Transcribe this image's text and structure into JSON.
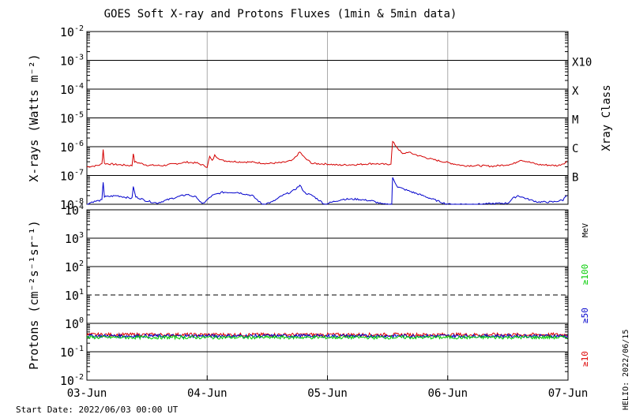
{
  "title": "GOES Soft X-ray and Protons Fluxes   (1min & 5min data)",
  "start_date_label": "Start Date: 2022/06/03 00:00 UT",
  "credit": "HELIO: 2022/06/15",
  "colors": {
    "xray_long": "#d40000",
    "xray_short": "#0000cc",
    "proton_10": "#dd0000",
    "proton_50": "#0000cc",
    "proton_100": "#00cc00",
    "grid": "#000000",
    "day_lines": "#aaaaaa"
  },
  "chart_data": [
    {
      "type": "line",
      "panel": "xray",
      "ylabel": "X-rays (Watts m⁻²)",
      "yscale": "log",
      "ylim": [
        1e-08,
        0.01
      ],
      "y_ticks": [
        {
          "base": "10",
          "exp": "-2"
        },
        {
          "base": "10",
          "exp": "-3"
        },
        {
          "base": "10",
          "exp": "-4"
        },
        {
          "base": "10",
          "exp": "-5"
        },
        {
          "base": "10",
          "exp": "-6"
        },
        {
          "base": "10",
          "exp": "-7"
        },
        {
          "base": "10",
          "exp": "-8"
        }
      ],
      "right_axis_label": "Xray Class",
      "class_labels": [
        {
          "label": "X10",
          "level": 0.001
        },
        {
          "label": "X",
          "level": 0.0001
        },
        {
          "label": "M",
          "level": 1e-05
        },
        {
          "label": "C",
          "level": 1e-06
        },
        {
          "label": "B",
          "level": 1e-07
        }
      ],
      "x_ticks": [
        "03-Jun",
        "04-Jun",
        "05-Jun",
        "06-Jun",
        "07-Jun"
      ],
      "xlim": [
        "2022-06-03",
        "2022-06-07"
      ],
      "series": [
        {
          "color_key": "xray_long",
          "points": [
            [
              "2022-06-03 00:00",
              2e-07
            ],
            [
              "2022-06-03 02:00",
              2.2e-07
            ],
            [
              "2022-06-03 03:00",
              2.5e-07
            ],
            [
              "2022-06-03 03:15",
              8e-07
            ],
            [
              "2022-06-03 03:30",
              2.6e-07
            ],
            [
              "2022-06-03 06:00",
              2.4e-07
            ],
            [
              "2022-06-03 09:00",
              2.2e-07
            ],
            [
              "2022-06-03 09:15",
              6e-07
            ],
            [
              "2022-06-03 09:30",
              3e-07
            ],
            [
              "2022-06-03 12:00",
              2.3e-07
            ],
            [
              "2022-06-03 15:00",
              2.2e-07
            ],
            [
              "2022-06-03 18:00",
              2.6e-07
            ],
            [
              "2022-06-03 20:00",
              2.9e-07
            ],
            [
              "2022-06-03 22:00",
              2.7e-07
            ],
            [
              "2022-06-04 00:00",
              2e-07
            ],
            [
              "2022-06-04 00:30",
              4.5e-07
            ],
            [
              "2022-06-04 01:00",
              3.2e-07
            ],
            [
              "2022-06-04 01:30",
              5e-07
            ],
            [
              "2022-06-04 03:00",
              3.3e-07
            ],
            [
              "2022-06-04 06:00",
              3e-07
            ],
            [
              "2022-06-04 09:00",
              2.9e-07
            ],
            [
              "2022-06-04 12:00",
              2.6e-07
            ],
            [
              "2022-06-04 15:00",
              2.8e-07
            ],
            [
              "2022-06-04 17:00",
              3.3e-07
            ],
            [
              "2022-06-04 18:30",
              6.5e-07
            ],
            [
              "2022-06-04 19:30",
              4e-07
            ],
            [
              "2022-06-04 21:00",
              2.6e-07
            ],
            [
              "2022-06-05 00:00",
              2.5e-07
            ],
            [
              "2022-06-05 02:00",
              2.3e-07
            ],
            [
              "2022-06-05 06:00",
              2.4e-07
            ],
            [
              "2022-06-05 09:00",
              2.6e-07
            ],
            [
              "2022-06-05 12:00",
              2.4e-07
            ],
            [
              "2022-06-05 12:40",
              2.6e-07
            ],
            [
              "2022-06-05 13:00",
              1.5e-06
            ],
            [
              "2022-06-05 14:00",
              9e-07
            ],
            [
              "2022-06-05 15:00",
              5.5e-07
            ],
            [
              "2022-06-05 16:00",
              6.5e-07
            ],
            [
              "2022-06-05 18:00",
              5e-07
            ],
            [
              "2022-06-05 21:00",
              3.6e-07
            ],
            [
              "2022-06-06 00:00",
              2.8e-07
            ],
            [
              "2022-06-06 03:00",
              2.2e-07
            ],
            [
              "2022-06-06 06:00",
              2.2e-07
            ],
            [
              "2022-06-06 09:00",
              2.1e-07
            ],
            [
              "2022-06-06 13:00",
              2.5e-07
            ],
            [
              "2022-06-06 14:30",
              3.5e-07
            ],
            [
              "2022-06-06 16:00",
              3e-07
            ],
            [
              "2022-06-06 18:00",
              2.4e-07
            ],
            [
              "2022-06-06 22:00",
              2.2e-07
            ],
            [
              "2022-06-06 23:30",
              2.8e-07
            ],
            [
              "2022-06-07 00:00",
              3.5e-07
            ]
          ]
        },
        {
          "color_key": "xray_short",
          "points": [
            [
              "2022-06-03 00:00",
              1e-08
            ],
            [
              "2022-06-03 01:00",
              1.2e-08
            ],
            [
              "2022-06-03 03:00",
              1.4e-08
            ],
            [
              "2022-06-03 03:15",
              6e-08
            ],
            [
              "2022-06-03 03:30",
              1.8e-08
            ],
            [
              "2022-06-03 06:00",
              2e-08
            ],
            [
              "2022-06-03 09:00",
              1.6e-08
            ],
            [
              "2022-06-03 09:15",
              4e-08
            ],
            [
              "2022-06-03 09:45",
              1.8e-08
            ],
            [
              "2022-06-03 12:00",
              1.3e-08
            ],
            [
              "2022-06-03 14:00",
              1.1e-08
            ],
            [
              "2022-06-03 17:00",
              1.6e-08
            ],
            [
              "2022-06-03 20:00",
              2.2e-08
            ],
            [
              "2022-06-03 22:00",
              1.7e-08
            ],
            [
              "2022-06-03 23:00",
              1e-08
            ],
            [
              "2022-06-04 00:20",
              1.6e-08
            ],
            [
              "2022-06-04 01:00",
              2e-08
            ],
            [
              "2022-06-04 03:00",
              2.6e-08
            ],
            [
              "2022-06-04 06:00",
              2.6e-08
            ],
            [
              "2022-06-04 09:00",
              2e-08
            ],
            [
              "2022-06-04 11:00",
              1e-08
            ],
            [
              "2022-06-04 13:00",
              1.2e-08
            ],
            [
              "2022-06-04 15:00",
              2e-08
            ],
            [
              "2022-06-04 17:00",
              2.8e-08
            ],
            [
              "2022-06-04 18:30",
              4.5e-08
            ],
            [
              "2022-06-04 19:30",
              2.5e-08
            ],
            [
              "2022-06-04 21:00",
              2e-08
            ],
            [
              "2022-06-04 23:30",
              1e-08
            ],
            [
              "2022-06-05 01:00",
              1.2e-08
            ],
            [
              "2022-06-05 03:00",
              1.5e-08
            ],
            [
              "2022-06-05 06:00",
              1.5e-08
            ],
            [
              "2022-06-05 09:00",
              1.3e-08
            ],
            [
              "2022-06-05 11:00",
              1e-08
            ],
            [
              "2022-06-05 12:50",
              1e-08
            ],
            [
              "2022-06-05 13:00",
              8.5e-08
            ],
            [
              "2022-06-05 14:00",
              4e-08
            ],
            [
              "2022-06-05 16:00",
              3e-08
            ],
            [
              "2022-06-05 19:00",
              2e-08
            ],
            [
              "2022-06-05 22:00",
              1.3e-08
            ],
            [
              "2022-06-06 00:00",
              1e-08
            ],
            [
              "2022-06-06 06:00",
              1e-08
            ],
            [
              "2022-06-06 12:00",
              1.1e-08
            ],
            [
              "2022-06-06 13:00",
              1.6e-08
            ],
            [
              "2022-06-06 14:00",
              2e-08
            ],
            [
              "2022-06-06 16:00",
              1.5e-08
            ],
            [
              "2022-06-06 18:00",
              1.2e-08
            ],
            [
              "2022-06-06 21:00",
              1.2e-08
            ],
            [
              "2022-06-06 23:00",
              1.4e-08
            ],
            [
              "2022-06-07 00:00",
              2.5e-08
            ]
          ]
        }
      ]
    },
    {
      "type": "line",
      "panel": "protons",
      "ylabel": "Protons (cm⁻²s⁻¹sr⁻¹)",
      "yscale": "log",
      "ylim": [
        0.01,
        10000
      ],
      "y_ticks": [
        {
          "base": "10",
          "exp": "4"
        },
        {
          "base": "10",
          "exp": "3"
        },
        {
          "base": "10",
          "exp": "2"
        },
        {
          "base": "10",
          "exp": "1"
        },
        {
          "base": "10",
          "exp": "0"
        },
        {
          "base": "10",
          "exp": "-1"
        },
        {
          "base": "10",
          "exp": "-2"
        }
      ],
      "dashed_threshold": 10,
      "energy_unit": "MeV",
      "x_ticks": [
        "03-Jun",
        "04-Jun",
        "05-Jun",
        "06-Jun",
        "07-Jun"
      ],
      "xlim": [
        "2022-06-03",
        "2022-06-07"
      ],
      "series": [
        {
          "name": "≥10",
          "color_key": "proton_10",
          "level": 0.4
        },
        {
          "name": "≥50",
          "color_key": "proton_50",
          "level": 0.36
        },
        {
          "name": "≥100",
          "color_key": "proton_100",
          "level": 0.32
        }
      ]
    }
  ]
}
